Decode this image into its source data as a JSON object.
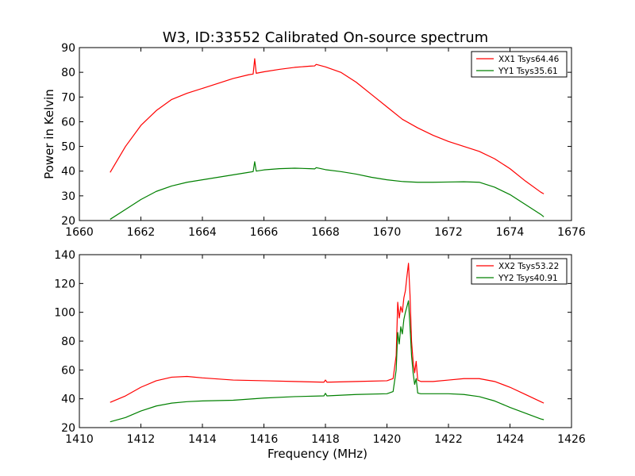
{
  "figure_title": "W3, ID:33552 Calibrated On-source spectrum",
  "chart_data": [
    {
      "type": "line",
      "title": "W3, ID:33552 Calibrated On-source spectrum",
      "xlabel": "",
      "ylabel": "Power in Kelvin",
      "xlim": [
        1660,
        1676
      ],
      "ylim": [
        20,
        90
      ],
      "xticks": [
        1660,
        1662,
        1664,
        1666,
        1668,
        1670,
        1672,
        1674,
        1676
      ],
      "yticks": [
        20,
        30,
        40,
        50,
        60,
        70,
        80,
        90
      ],
      "grid": false,
      "legend_position": "top-right",
      "series": [
        {
          "name": "XX1 Tsys64.46",
          "color": "#ff0000",
          "x": [
            1661.0,
            1661.5,
            1662.0,
            1662.5,
            1663.0,
            1663.5,
            1664.0,
            1664.5,
            1665.0,
            1665.5,
            1665.65,
            1665.7,
            1665.75,
            1666.0,
            1666.5,
            1667.0,
            1667.5,
            1667.65,
            1667.7,
            1668.0,
            1668.5,
            1669.0,
            1669.5,
            1670.0,
            1670.5,
            1671.0,
            1671.5,
            1672.0,
            1672.5,
            1673.0,
            1673.5,
            1674.0,
            1674.5,
            1675.0,
            1675.1
          ],
          "y": [
            39.5,
            50,
            58.5,
            64.5,
            69,
            71.5,
            73.5,
            75.5,
            77.5,
            79,
            79.3,
            85.5,
            79.6,
            80.2,
            81.2,
            82.0,
            82.5,
            82.6,
            83.2,
            82.2,
            80,
            76,
            71,
            66,
            61,
            57.5,
            54.5,
            52,
            50,
            48,
            45,
            41,
            36,
            31.5,
            30.8
          ]
        },
        {
          "name": "YY1 Tsys35.61",
          "color": "#008000",
          "x": [
            1661.0,
            1661.5,
            1662.0,
            1662.5,
            1663.0,
            1663.5,
            1664.0,
            1664.5,
            1665.0,
            1665.5,
            1665.65,
            1665.7,
            1665.75,
            1666.0,
            1666.5,
            1667.0,
            1667.5,
            1667.65,
            1667.7,
            1668.0,
            1668.5,
            1669.0,
            1669.5,
            1670.0,
            1670.5,
            1671.0,
            1671.5,
            1672.0,
            1672.5,
            1673.0,
            1673.5,
            1674.0,
            1674.5,
            1675.0,
            1675.1
          ],
          "y": [
            20.5,
            24.5,
            28.5,
            31.8,
            34,
            35.5,
            36.5,
            37.5,
            38.5,
            39.5,
            39.8,
            43.8,
            40,
            40.5,
            41,
            41.2,
            41,
            40.9,
            41.4,
            40.6,
            39.8,
            38.8,
            37.5,
            36.5,
            35.8,
            35.5,
            35.5,
            35.6,
            35.7,
            35.5,
            33.5,
            30.5,
            26.5,
            22.5,
            21.5
          ]
        }
      ]
    },
    {
      "type": "line",
      "title": "",
      "xlabel": "Frequency (MHz)",
      "ylabel": "",
      "xlim": [
        1410,
        1426
      ],
      "ylim": [
        20,
        140
      ],
      "xticks": [
        1410,
        1412,
        1414,
        1416,
        1418,
        1420,
        1422,
        1424,
        1426
      ],
      "yticks": [
        20,
        40,
        60,
        80,
        100,
        120,
        140
      ],
      "grid": false,
      "legend_position": "top-right",
      "series": [
        {
          "name": "XX2 Tsys53.22",
          "color": "#ff0000",
          "x": [
            1411.0,
            1411.5,
            1412.0,
            1412.5,
            1413.0,
            1413.5,
            1414.0,
            1415.0,
            1416.0,
            1417.0,
            1417.95,
            1418.0,
            1418.05,
            1419.0,
            1420.0,
            1420.2,
            1420.3,
            1420.35,
            1420.4,
            1420.45,
            1420.5,
            1420.55,
            1420.6,
            1420.65,
            1420.7,
            1420.75,
            1420.8,
            1420.85,
            1420.9,
            1420.95,
            1421.0,
            1421.1,
            1421.5,
            1422.0,
            1422.5,
            1423.0,
            1423.5,
            1424.0,
            1424.5,
            1425.0,
            1425.1
          ],
          "y": [
            37.5,
            42,
            48,
            52.5,
            55,
            55.5,
            54.5,
            53,
            52.5,
            52,
            51.5,
            53,
            51.5,
            52,
            52.5,
            54,
            70,
            107,
            96,
            104,
            100,
            110,
            115,
            125,
            134,
            112,
            80,
            66,
            58,
            66,
            53,
            52,
            52,
            53,
            54,
            54,
            52,
            48,
            43,
            38,
            37
          ]
        },
        {
          "name": "YY2 Tsys40.91",
          "color": "#008000",
          "x": [
            1411.0,
            1411.5,
            1412.0,
            1412.5,
            1413.0,
            1413.5,
            1414.0,
            1415.0,
            1416.0,
            1417.0,
            1417.95,
            1418.0,
            1418.05,
            1419.0,
            1420.0,
            1420.2,
            1420.3,
            1420.35,
            1420.4,
            1420.45,
            1420.5,
            1420.55,
            1420.6,
            1420.65,
            1420.7,
            1420.75,
            1420.8,
            1420.85,
            1420.9,
            1420.95,
            1421.0,
            1421.1,
            1421.5,
            1422.0,
            1422.5,
            1423.0,
            1423.5,
            1424.0,
            1424.5,
            1425.0,
            1425.1
          ],
          "y": [
            24,
            27,
            31.5,
            35,
            37,
            38,
            38.5,
            39,
            40.5,
            41.5,
            42,
            43.8,
            42,
            43,
            43.5,
            45,
            60,
            86,
            78,
            90,
            85,
            95,
            100,
            104,
            108,
            90,
            70,
            58,
            50,
            54,
            44,
            43.5,
            43.5,
            43.5,
            43,
            41.5,
            38.5,
            34,
            30,
            26,
            25.5
          ]
        }
      ]
    }
  ]
}
